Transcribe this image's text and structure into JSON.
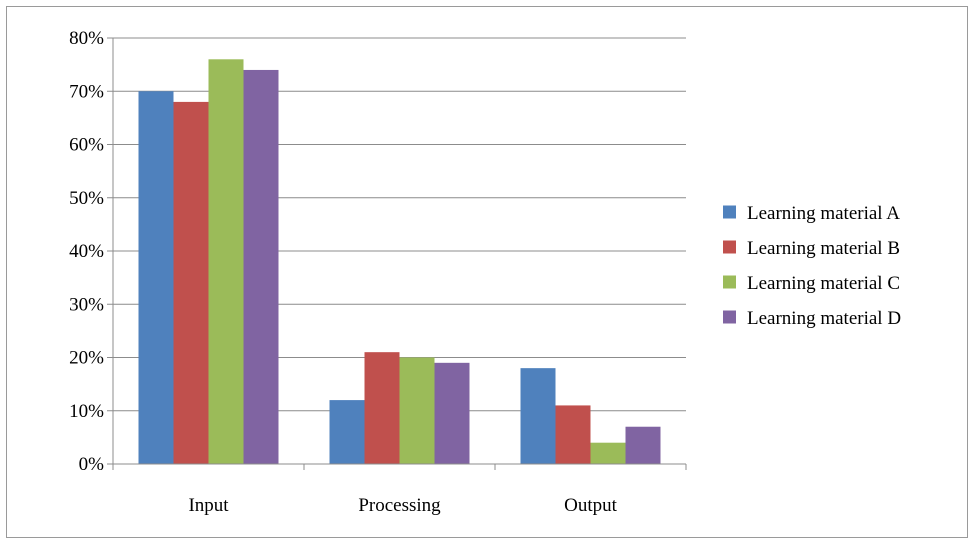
{
  "chart_data": {
    "type": "bar",
    "categories": [
      "Input",
      "Processing",
      "Output"
    ],
    "series": [
      {
        "name": "Learning material A",
        "color": "#4f81bd",
        "values": [
          70,
          12,
          18
        ]
      },
      {
        "name": "Learning material B",
        "color": "#c0504d",
        "values": [
          68,
          21,
          11
        ]
      },
      {
        "name": "Learning material C",
        "color": "#9bbb59",
        "values": [
          76,
          20,
          4
        ]
      },
      {
        "name": "Learning material D",
        "color": "#8064a2",
        "values": [
          74,
          19,
          7
        ]
      }
    ],
    "ylim": [
      0,
      80
    ],
    "yticks": [
      0,
      10,
      20,
      30,
      40,
      50,
      60,
      70,
      80
    ],
    "ytick_labels": [
      "0%",
      "10%",
      "20%",
      "30%",
      "40%",
      "50%",
      "60%",
      "70%",
      "80%"
    ],
    "unit": "%",
    "grid": true,
    "legend_position": "right",
    "title": "",
    "xlabel": "",
    "ylabel": ""
  }
}
